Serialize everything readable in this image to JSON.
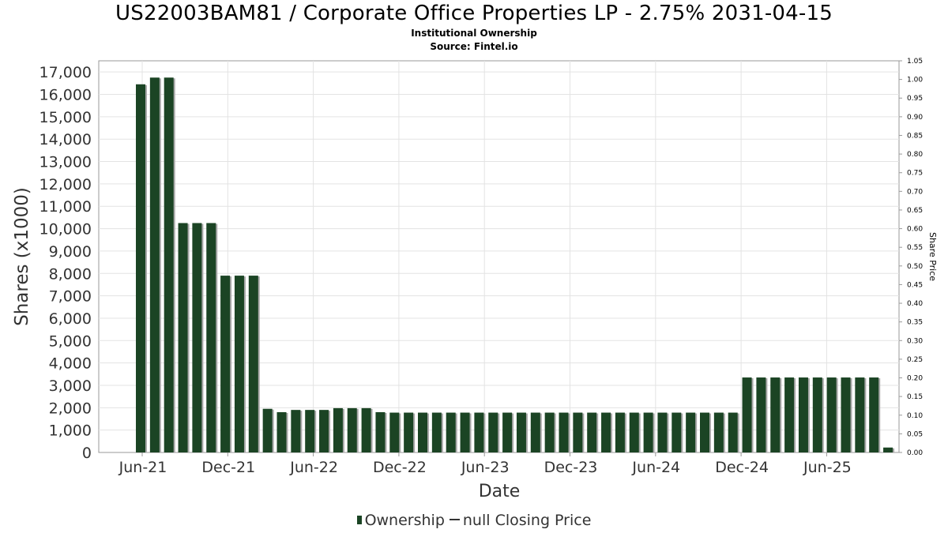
{
  "chart_data": {
    "type": "bar",
    "title": "US22003BAM81 / Corporate Office Properties LP - 2.75% 2031-04-15",
    "subtitle_lines": [
      "Institutional Ownership",
      "Source: Fintel.io"
    ],
    "xlabel": "Date",
    "ylabel": "Shares (x1000)",
    "y2label": "Share Price",
    "ylim": [
      0,
      17500
    ],
    "y2lim": [
      0,
      1.05
    ],
    "y_ticks": [
      "0",
      "1,000",
      "2,000",
      "3,000",
      "4,000",
      "5,000",
      "6,000",
      "7,000",
      "8,000",
      "9,000",
      "10,000",
      "11,000",
      "12,000",
      "13,000",
      "14,000",
      "15,000",
      "16,000",
      "17,000"
    ],
    "y2_ticks": [
      "0.00",
      "0.05",
      "0.10",
      "0.15",
      "0.20",
      "0.25",
      "0.30",
      "0.35",
      "0.40",
      "0.45",
      "0.50",
      "0.55",
      "0.60",
      "0.65",
      "0.70",
      "0.75",
      "0.80",
      "0.85",
      "0.90",
      "0.95",
      "1.00",
      "1.05"
    ],
    "x_ticks": [
      "Jun-21",
      "Dec-21",
      "Jun-22",
      "Dec-22",
      "Jun-23",
      "Dec-23",
      "Jun-24",
      "Dec-24",
      "Jun-25"
    ],
    "grid": true,
    "legend_position": "bottom",
    "series": [
      {
        "name": "Ownership",
        "color": "#1b4424",
        "values": [
          16450,
          16750,
          16750,
          10250,
          10250,
          10250,
          7900,
          7900,
          7900,
          1950,
          1800,
          1900,
          1900,
          1900,
          1980,
          1980,
          1980,
          1800,
          1780,
          1780,
          1780,
          1780,
          1780,
          1780,
          1780,
          1780,
          1780,
          1780,
          1780,
          1780,
          1780,
          1780,
          1780,
          1780,
          1780,
          1780,
          1780,
          1780,
          1780,
          1780,
          1780,
          1780,
          1780,
          3350,
          3350,
          3350,
          3350,
          3350,
          3350,
          3350,
          3350,
          3350,
          3350,
          220
        ]
      },
      {
        "name": "null Closing Price",
        "color": "#333333",
        "values": []
      }
    ]
  }
}
